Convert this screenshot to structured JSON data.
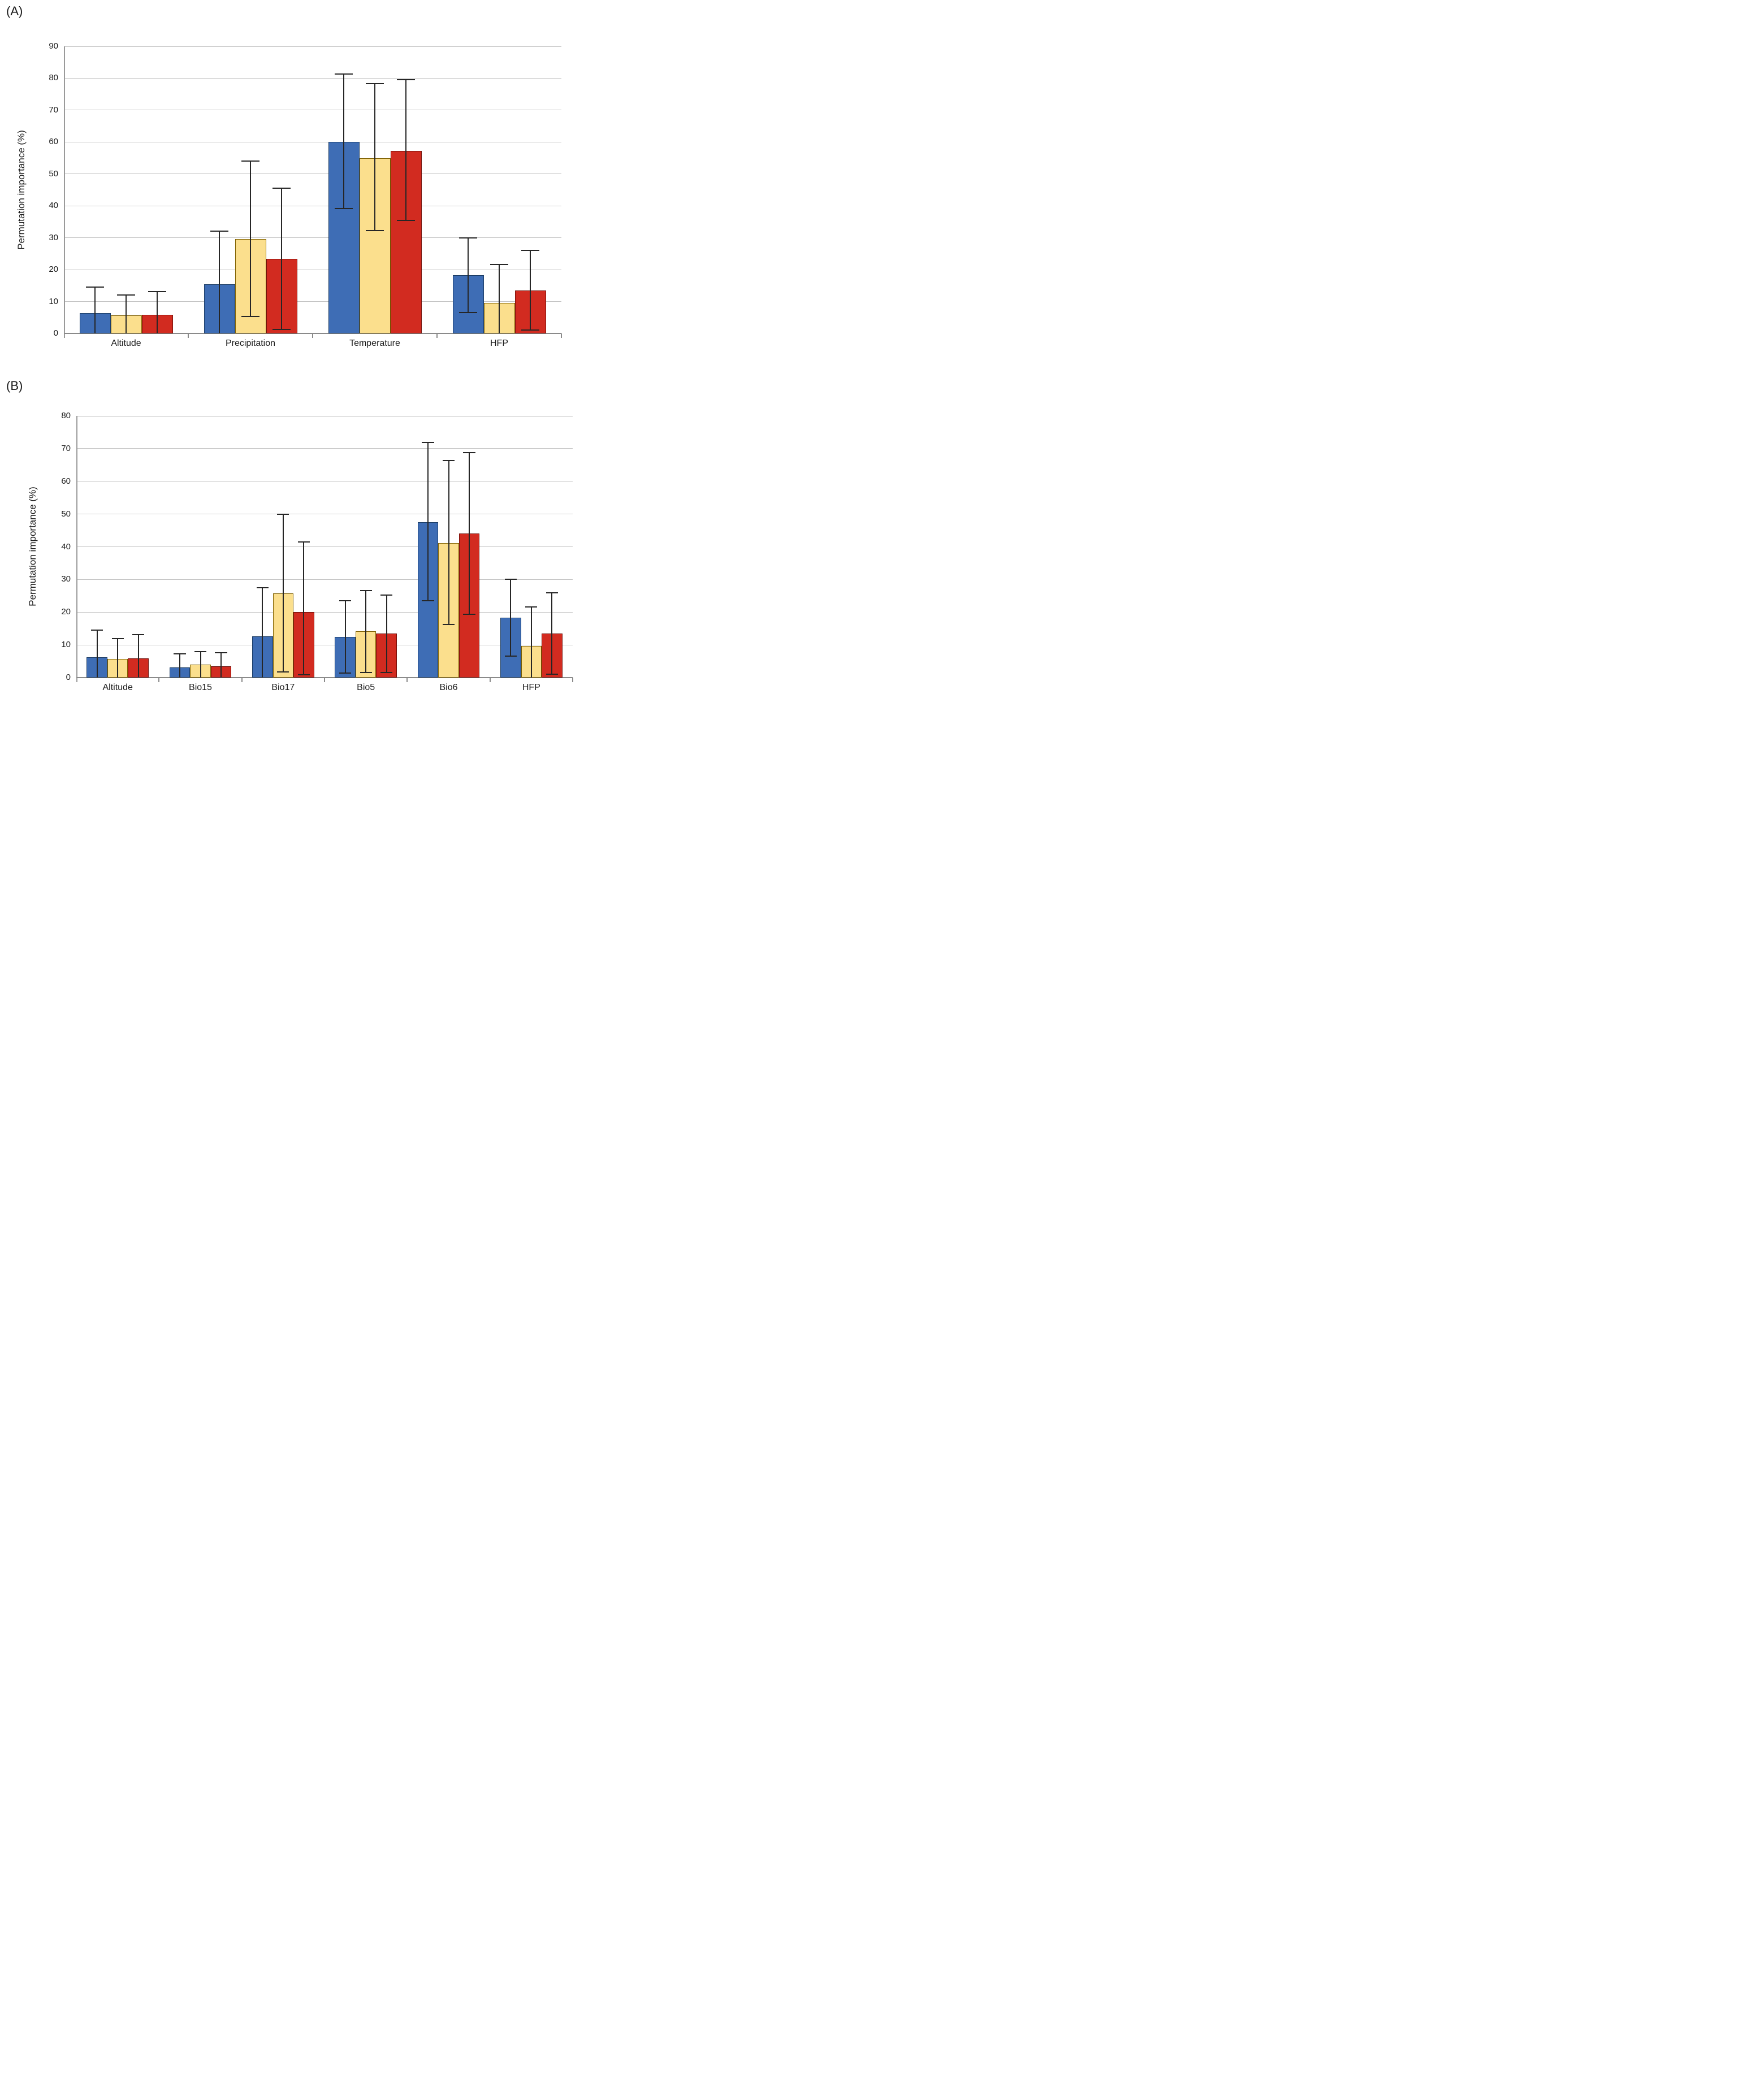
{
  "figure": {
    "background": "#ffffff",
    "text_color": "#1a1a1a",
    "gridline_color": "#c4c4c4",
    "axis_color": "#8a8a8a",
    "error_bar_color": "#262626",
    "series_colors": {
      "blue": {
        "fill": "#3e6db5",
        "border": "#1c3d66"
      },
      "yellow": {
        "fill": "#fbdf8d",
        "border": "#7f6000"
      },
      "red": {
        "fill": "#d22b20",
        "border": "#73100a"
      }
    }
  },
  "chart_data": [
    {
      "type": "bar",
      "panel_label": "(A)",
      "title": "",
      "xlabel": "",
      "ylabel": "Permutation importance (%)",
      "ylim": [
        0,
        90
      ],
      "ytick_step": 10,
      "grid": true,
      "legend_position": "none",
      "categories": [
        "Altitude",
        "Precipitation",
        "Temperature",
        "HFP"
      ],
      "series": [
        {
          "name": "blue",
          "values": [
            6.3,
            15.5,
            60.1,
            18.3
          ],
          "err_low": [
            0,
            0,
            39.2,
            6.5
          ],
          "err_high": [
            14.5,
            32.1,
            81.3,
            30.0
          ]
        },
        {
          "name": "yellow",
          "values": [
            5.7,
            29.6,
            55.0,
            9.6
          ],
          "err_low": [
            0,
            5.3,
            32.2,
            0
          ],
          "err_high": [
            12.0,
            54.1,
            78.3,
            21.6
          ]
        },
        {
          "name": "red",
          "values": [
            5.9,
            23.4,
            57.3,
            13.5
          ],
          "err_low": [
            0,
            1.2,
            35.5,
            1.0
          ],
          "err_high": [
            13.2,
            45.5,
            79.6,
            26.0
          ]
        }
      ]
    },
    {
      "type": "bar",
      "panel_label": "(B)",
      "title": "",
      "xlabel": "",
      "ylabel": "Permutation importance (%)",
      "ylim": [
        0,
        80
      ],
      "ytick_step": 10,
      "grid": true,
      "legend_position": "none",
      "categories": [
        "Altitude",
        "Bio15",
        "Bio17",
        "Bio5",
        "Bio6",
        "HFP"
      ],
      "series": [
        {
          "name": "blue",
          "values": [
            6.3,
            3.1,
            12.7,
            12.4,
            47.6,
            18.3
          ],
          "err_low": [
            0,
            0,
            0,
            1.4,
            23.5,
            6.5
          ],
          "err_high": [
            14.6,
            7.3,
            27.4,
            23.5,
            71.8,
            30.0
          ]
        },
        {
          "name": "yellow",
          "values": [
            5.7,
            3.9,
            25.8,
            14.1,
            41.2,
            9.6
          ],
          "err_low": [
            0,
            0,
            1.8,
            1.5,
            16.3,
            0
          ],
          "err_high": [
            12.0,
            7.9,
            50.0,
            26.6,
            66.3,
            21.6
          ]
        },
        {
          "name": "red",
          "values": [
            5.9,
            3.5,
            20.0,
            13.4,
            44.0,
            13.5
          ],
          "err_low": [
            0,
            0,
            0.9,
            1.5,
            19.4,
            1.0
          ],
          "err_high": [
            13.2,
            7.6,
            41.4,
            25.3,
            68.8,
            26.0
          ]
        }
      ]
    }
  ]
}
